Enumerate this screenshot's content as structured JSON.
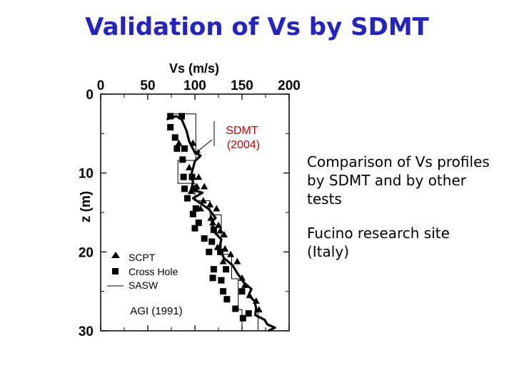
{
  "title": "Validation of Vs by SDMT",
  "side_text": {
    "comparison": "Comparison of Vs profiles by SDMT and by other tests",
    "site": "Fucino research site (Italy)"
  },
  "chart_data": {
    "type": "scatter",
    "xlabel": "Vs (m/s)",
    "ylabel": "z (m)",
    "xlim": [
      0,
      200
    ],
    "ylim": [
      0,
      30
    ],
    "y_inverted": true,
    "x_axis_position": "top",
    "xticks": [
      0,
      50,
      100,
      150,
      200
    ],
    "yticks": [
      0,
      10,
      20,
      30
    ],
    "legend_position": "bottom-left",
    "legend": [
      {
        "label": "SCPT",
        "marker": "triangle"
      },
      {
        "label": "Cross Hole",
        "marker": "square"
      },
      {
        "label": "SASW",
        "marker": "line"
      }
    ],
    "source_note": "AGI (1991)",
    "annotations": [
      {
        "text_line1": "SDMT",
        "text_line2": "(2004)",
        "color": "#cc0000"
      }
    ],
    "series": [
      {
        "name": "SDMT (2004)",
        "style": "thick-line",
        "points": [
          [
            70,
            3.2
          ],
          [
            80,
            2.8
          ],
          [
            86,
            3.2
          ],
          [
            91,
            4.6
          ],
          [
            94,
            6
          ],
          [
            100,
            7.4
          ],
          [
            106,
            7.8
          ],
          [
            100,
            8.5
          ],
          [
            96,
            10.3
          ],
          [
            98,
            11.2
          ],
          [
            96,
            12.1
          ],
          [
            108,
            12.5
          ],
          [
            98,
            13.2
          ],
          [
            115,
            14.6
          ],
          [
            122,
            15.7
          ],
          [
            118,
            16.1
          ],
          [
            120,
            17.4
          ],
          [
            128,
            18.4
          ],
          [
            126,
            19.6
          ],
          [
            131,
            20.8
          ],
          [
            140,
            21.7
          ],
          [
            145,
            22.7
          ],
          [
            152,
            23.9
          ],
          [
            160,
            24.7
          ],
          [
            157,
            25.5
          ],
          [
            163,
            26.2
          ],
          [
            165,
            27.1
          ],
          [
            164,
            28
          ],
          [
            174,
            28.6
          ],
          [
            177,
            29.2
          ],
          [
            185,
            29.6
          ],
          [
            178,
            30
          ]
        ]
      },
      {
        "name": "SASW",
        "style": "step-line",
        "points": [
          [
            73,
            2.5
          ],
          [
            101,
            2.5
          ],
          [
            101,
            8.4
          ],
          [
            82,
            8.4
          ],
          [
            82,
            11.3
          ],
          [
            100,
            11.3
          ],
          [
            100,
            13.5
          ],
          [
            116,
            13.5
          ],
          [
            116,
            15.3
          ],
          [
            128,
            15.3
          ],
          [
            128,
            20.3
          ],
          [
            139,
            20.3
          ],
          [
            139,
            23.4
          ],
          [
            146,
            23.4
          ],
          [
            146,
            27.3
          ],
          [
            150,
            27.3
          ],
          [
            150,
            30
          ],
          [
            167,
            30
          ],
          [
            167,
            27.3
          ]
        ]
      },
      {
        "name": "Cross Hole",
        "marker": "square",
        "points": [
          [
            74,
            2.8
          ],
          [
            86,
            2.8
          ],
          [
            74,
            4.2
          ],
          [
            79,
            5.5
          ],
          [
            81,
            6.9
          ],
          [
            89,
            6.9
          ],
          [
            87,
            8.3
          ],
          [
            88,
            10.5
          ],
          [
            97,
            10.5
          ],
          [
            89,
            12
          ],
          [
            100,
            12
          ],
          [
            92,
            13.2
          ],
          [
            101,
            14.5
          ],
          [
            98,
            15.2
          ],
          [
            104,
            16.3
          ],
          [
            100,
            17
          ],
          [
            120,
            17.2
          ],
          [
            110,
            18.3
          ],
          [
            118,
            18.7
          ],
          [
            115,
            20
          ],
          [
            127,
            20
          ],
          [
            120,
            22.2
          ],
          [
            133,
            22.2
          ],
          [
            119,
            23.3
          ],
          [
            128,
            23.6
          ],
          [
            130,
            25
          ],
          [
            150,
            25
          ],
          [
            134,
            26
          ],
          [
            143,
            27.2
          ],
          [
            157,
            27.8
          ],
          [
            151,
            28.4
          ]
        ]
      },
      {
        "name": "SCPT",
        "marker": "triangle",
        "points": [
          [
            83,
            6.2
          ],
          [
            98,
            6.2
          ],
          [
            94,
            9.3
          ],
          [
            98,
            10.5
          ],
          [
            104,
            10.5
          ],
          [
            102,
            11.7
          ],
          [
            110,
            11.7
          ],
          [
            96,
            12.3
          ],
          [
            109,
            13.5
          ],
          [
            116,
            14
          ],
          [
            106,
            14.5
          ],
          [
            123,
            14.5
          ],
          [
            117,
            15.7
          ],
          [
            119,
            16.3
          ],
          [
            125,
            16.6
          ],
          [
            127,
            17.3
          ],
          [
            131,
            17.8
          ],
          [
            124,
            19.4
          ],
          [
            132,
            19.6
          ],
          [
            138,
            20.3
          ],
          [
            130,
            21.2
          ],
          [
            145,
            21.2
          ],
          [
            150,
            23.3
          ],
          [
            153,
            24.2
          ],
          [
            158,
            25.5
          ],
          [
            165,
            26.2
          ],
          [
            168,
            27.3
          ]
        ]
      }
    ]
  }
}
